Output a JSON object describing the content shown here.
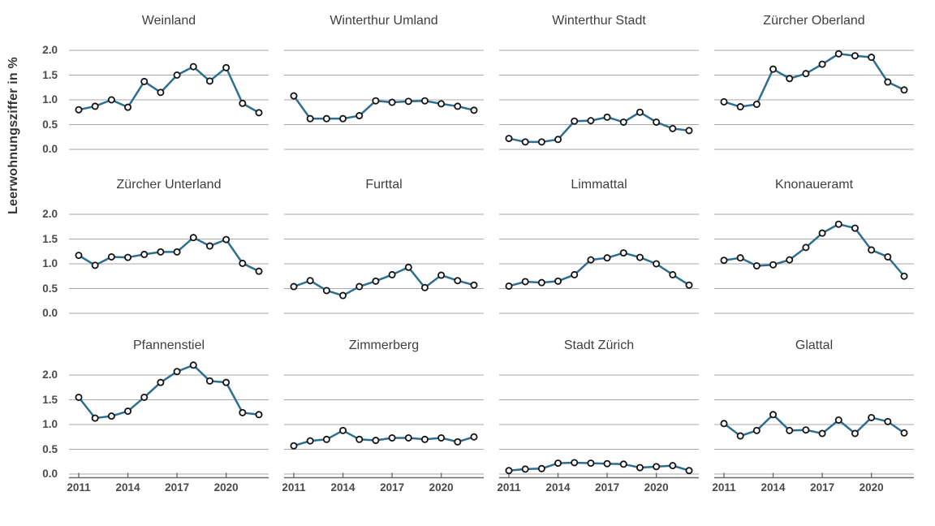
{
  "figure": {
    "background": "#ffffff"
  },
  "chart_data": {
    "type": "line",
    "title": "",
    "ylabel": "Leerwohnungsziffer in %",
    "xlabel": "",
    "x": [
      2011,
      2012,
      2013,
      2014,
      2015,
      2016,
      2017,
      2018,
      2019,
      2020,
      2021,
      2022
    ],
    "x_ticks": [
      "2011",
      "2014",
      "2017",
      "2020"
    ],
    "y_ticks": [
      "2.0",
      "1.5",
      "1.0",
      "0.5",
      "0.0"
    ],
    "ylim": [
      0.0,
      2.3
    ],
    "grid": true,
    "legend": "none",
    "layout": "small multiples, 3 rows x 4 columns; y tick labels on first column only, x tick labels on bottom row only",
    "colors": {
      "line": "#2e6e91",
      "marker_stroke": "#141414",
      "marker_fill": "#fcfcfc",
      "gridline": "#a9a9a9",
      "axis_line": "#6b6b6b",
      "text": "#4a4a4a"
    },
    "facets": [
      {
        "title": "Weinland",
        "values": [
          0.8,
          0.87,
          1.0,
          0.85,
          1.37,
          1.15,
          1.5,
          1.67,
          1.38,
          1.65,
          0.93,
          0.74
        ]
      },
      {
        "title": "Winterthur Umland",
        "values": [
          1.08,
          0.62,
          0.62,
          0.62,
          0.68,
          0.98,
          0.95,
          0.97,
          0.98,
          0.92,
          0.87,
          0.79
        ]
      },
      {
        "title": "Winterthur Stadt",
        "values": [
          0.22,
          0.15,
          0.15,
          0.2,
          0.57,
          0.58,
          0.65,
          0.55,
          0.75,
          0.55,
          0.42,
          0.38
        ]
      },
      {
        "title": "Zürcher Oberland",
        "values": [
          0.96,
          0.86,
          0.91,
          1.62,
          1.43,
          1.53,
          1.72,
          1.93,
          1.89,
          1.86,
          1.36,
          1.2
        ]
      },
      {
        "title": "Zürcher Unterland",
        "values": [
          1.17,
          0.97,
          1.14,
          1.13,
          1.19,
          1.24,
          1.24,
          1.53,
          1.36,
          1.49,
          1.01,
          0.85
        ]
      },
      {
        "title": "Furttal",
        "values": [
          0.54,
          0.66,
          0.46,
          0.36,
          0.54,
          0.65,
          0.78,
          0.93,
          0.52,
          0.77,
          0.66,
          0.57
        ]
      },
      {
        "title": "Limmattal",
        "values": [
          0.55,
          0.64,
          0.62,
          0.65,
          0.78,
          1.08,
          1.12,
          1.22,
          1.13,
          1.0,
          0.78,
          0.57
        ]
      },
      {
        "title": "Knonaueramt",
        "values": [
          1.07,
          1.12,
          0.96,
          0.98,
          1.08,
          1.33,
          1.62,
          1.8,
          1.72,
          1.28,
          1.14,
          0.75
        ]
      },
      {
        "title": "Pfannenstiel",
        "values": [
          1.55,
          1.13,
          1.17,
          1.27,
          1.55,
          1.85,
          2.07,
          2.2,
          1.88,
          1.85,
          1.24,
          1.2
        ]
      },
      {
        "title": "Zimmerberg",
        "values": [
          0.57,
          0.67,
          0.7,
          0.88,
          0.7,
          0.68,
          0.73,
          0.73,
          0.7,
          0.73,
          0.65,
          0.75
        ]
      },
      {
        "title": "Stadt Zürich",
        "values": [
          0.07,
          0.1,
          0.11,
          0.22,
          0.23,
          0.22,
          0.21,
          0.2,
          0.13,
          0.15,
          0.17,
          0.07
        ]
      },
      {
        "title": "Glattal",
        "values": [
          1.02,
          0.77,
          0.88,
          1.2,
          0.88,
          0.89,
          0.82,
          1.09,
          0.82,
          1.14,
          1.06,
          0.83
        ]
      }
    ]
  }
}
